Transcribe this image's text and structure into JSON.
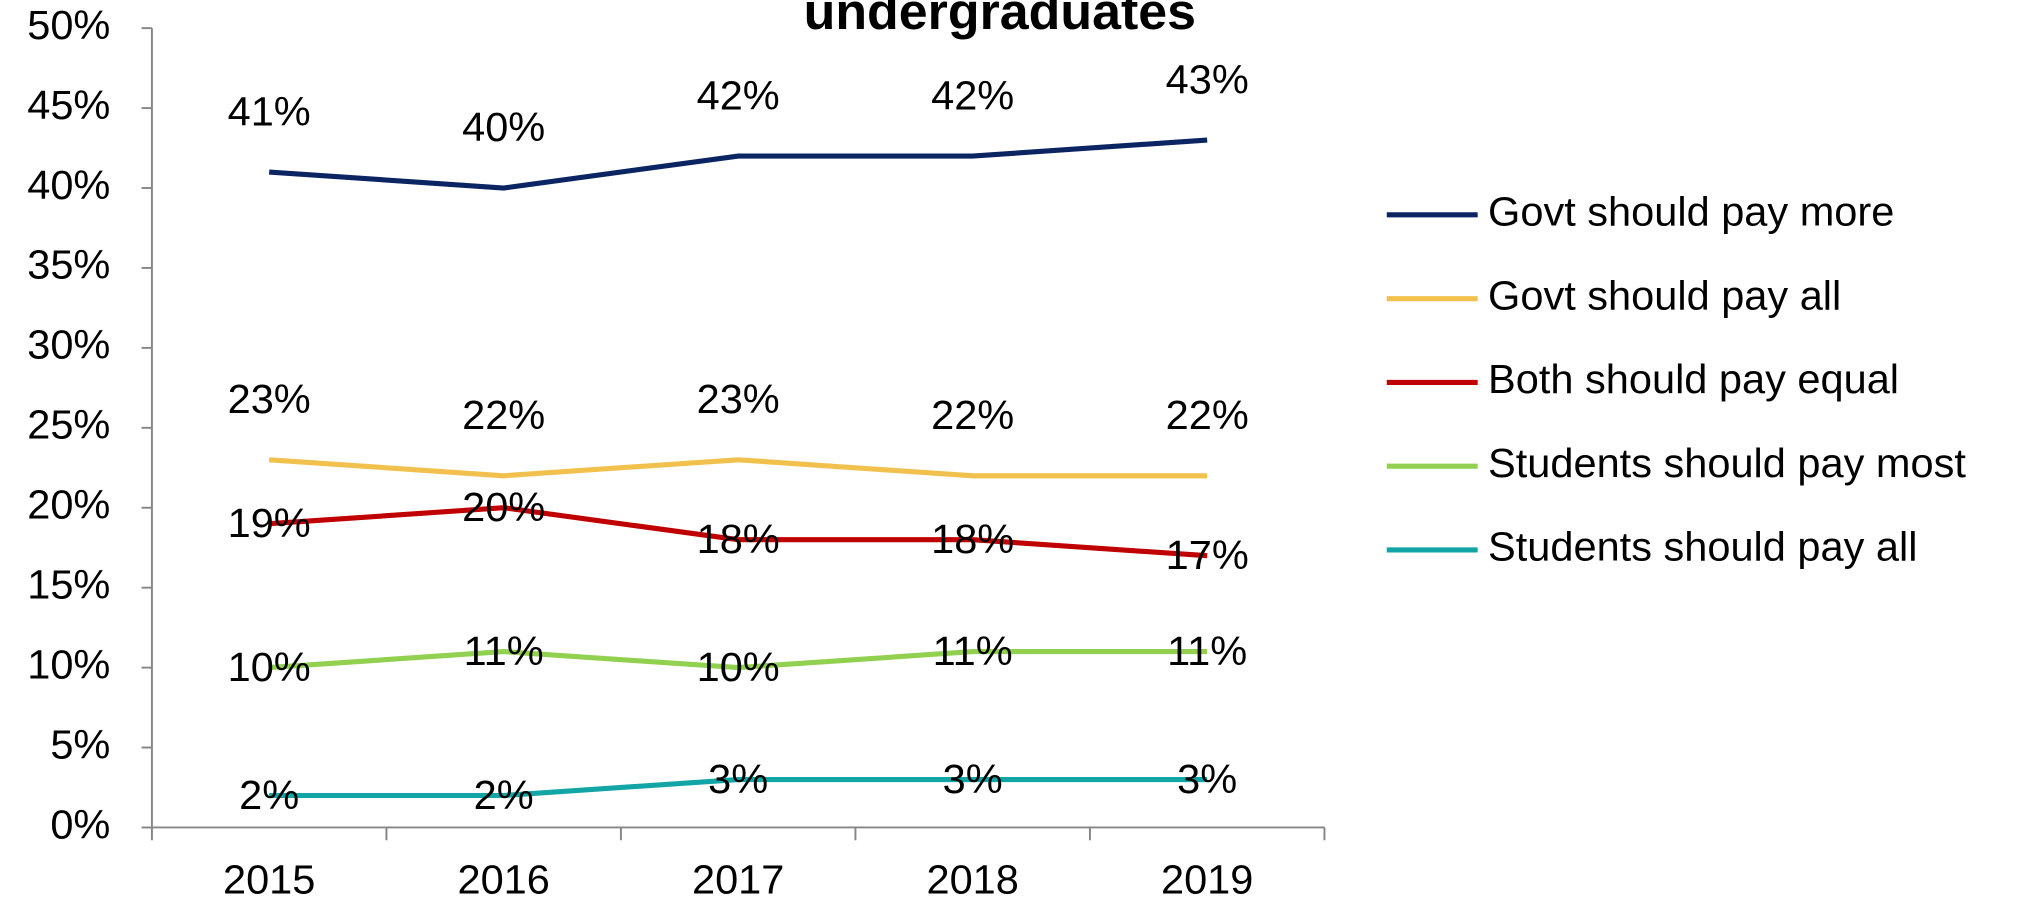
{
  "chart_data": {
    "type": "line",
    "title": "undergraduates",
    "categories": [
      "2015",
      "2016",
      "2017",
      "2018",
      "2019"
    ],
    "ylim": [
      0,
      50
    ],
    "yticks": [
      {
        "value": 0,
        "label": "0%"
      },
      {
        "value": 5,
        "label": "5%"
      },
      {
        "value": 10,
        "label": "10%"
      },
      {
        "value": 15,
        "label": "15%"
      },
      {
        "value": 20,
        "label": "20%"
      },
      {
        "value": 25,
        "label": "25%"
      },
      {
        "value": 30,
        "label": "30%"
      },
      {
        "value": 35,
        "label": "35%"
      },
      {
        "value": 40,
        "label": "40%"
      },
      {
        "value": 45,
        "label": "45%"
      },
      {
        "value": 50,
        "label": "50%"
      }
    ],
    "legend": "right",
    "series": [
      {
        "name": "Govt should pay more",
        "color": "#0b2462",
        "values": [
          41,
          40,
          42,
          42,
          43
        ],
        "value_labels": [
          "41%",
          "40%",
          "42%",
          "42%",
          "43%"
        ]
      },
      {
        "name": "Govt should pay all",
        "color": "#f2c04c",
        "values": [
          23,
          22,
          23,
          22,
          22
        ],
        "value_labels": [
          "23%",
          "22%",
          "23%",
          "22%",
          "22%"
        ]
      },
      {
        "name": "Both should pay equal",
        "color": "#c00000",
        "values": [
          19,
          20,
          18,
          18,
          17
        ],
        "value_labels": [
          "19%",
          "20%",
          "18%",
          "18%",
          "17%"
        ]
      },
      {
        "name": "Students should pay most",
        "color": "#92d050",
        "values": [
          10,
          11,
          10,
          11,
          11
        ],
        "value_labels": [
          "10%",
          "11%",
          "10%",
          "11%",
          "11%"
        ]
      },
      {
        "name": "Students should pay all",
        "color": "#12a5a5",
        "values": [
          2,
          2,
          3,
          3,
          3
        ],
        "value_labels": [
          "2%",
          "2%",
          "3%",
          "3%",
          "3%"
        ]
      }
    ]
  }
}
